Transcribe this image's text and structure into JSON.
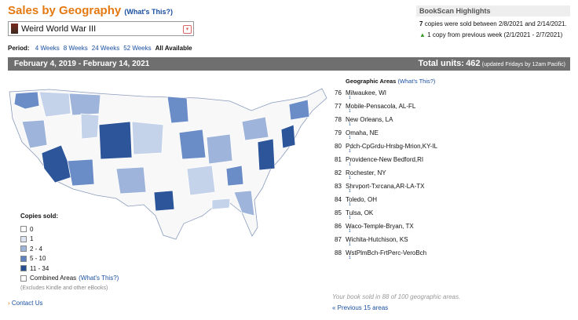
{
  "header": {
    "title": "Sales by Geography",
    "whats_this": "(What's This?)"
  },
  "book": {
    "title": "Weird World War III"
  },
  "period": {
    "label": "Period:",
    "options": [
      "4 Weeks",
      "8 Weeks",
      "24 Weeks",
      "52 Weeks",
      "All Available"
    ]
  },
  "summary_bar": {
    "date_range": "February 4, 2019 - February 14, 2021",
    "total_label": "Total units:",
    "total_units": 462,
    "note": "(updated Fridays by 12am Pacific)"
  },
  "highlights": {
    "title": "BookScan Highlights",
    "copies": 7,
    "copies_text": "copies were sold between 2/8/2021 and 2/14/2021.",
    "change": 1,
    "change_text": "copy from previous week (2/1/2021 - 2/7/2021)"
  },
  "legend": {
    "title": "Copies sold:",
    "items": [
      "0",
      "1",
      "2 - 4",
      "5 - 10",
      "11 - 34"
    ],
    "combined": "Combined Areas",
    "whats_this": "(What's This?)",
    "note": "(Excludes Kindle and other eBooks)"
  },
  "areas": {
    "title": "Geographic Areas",
    "whats_this": "(What's This?)",
    "rows": [
      {
        "rank": 76,
        "name": "Milwaukee, WI",
        "units": 1
      },
      {
        "rank": 77,
        "name": "Mobile-Pensacola, AL-FL",
        "units": 1
      },
      {
        "rank": 78,
        "name": "New Orleans, LA",
        "units": 1
      },
      {
        "rank": 79,
        "name": "Omaha, NE",
        "units": 1
      },
      {
        "rank": 80,
        "name": "Pdch-CpGrdu-Hrsbg-Mrion,KY-IL",
        "units": 1
      },
      {
        "rank": 81,
        "name": "Providence-New Bedford,RI",
        "units": 1
      },
      {
        "rank": 82,
        "name": "Rochester, NY",
        "units": 1
      },
      {
        "rank": 83,
        "name": "Shrvport-Txrcana,AR-LA-TX",
        "units": 1
      },
      {
        "rank": 84,
        "name": "Toledo, OH",
        "units": 1
      },
      {
        "rank": 85,
        "name": "Tulsa, OK",
        "units": 1
      },
      {
        "rank": 86,
        "name": "Waco-Temple-Bryan, TX",
        "units": 1
      },
      {
        "rank": 87,
        "name": "Wichita-Hutchison, KS",
        "units": 1
      },
      {
        "rank": 88,
        "name": "WstPlmBch-FrtPerc-VeroBch",
        "units": 1
      }
    ]
  },
  "footer": {
    "coverage": "Your book sold in 88 of 100 geographic areas.",
    "previous": "« Previous 15 areas",
    "contact": "Contact Us"
  }
}
